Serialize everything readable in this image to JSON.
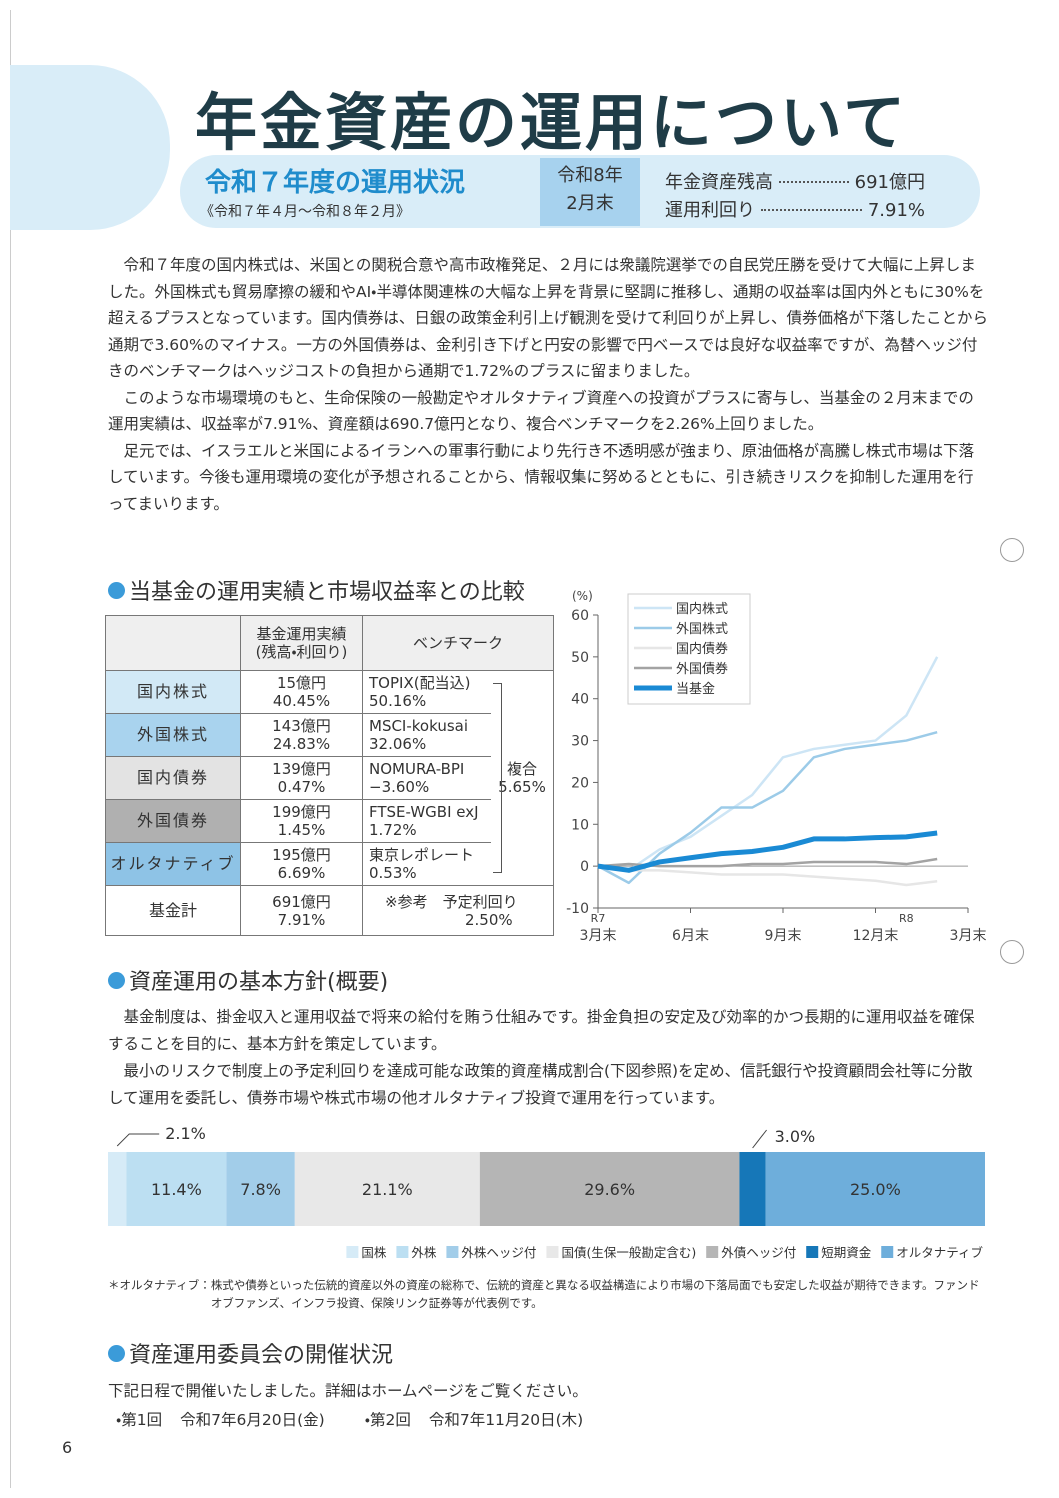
{
  "header": {
    "title": "年金資産の運用について",
    "subtitle": "令和７年度の運用状況",
    "period": "《令和７年４月～令和８年２月》",
    "asof": [
      "令和8年",
      "2月末"
    ],
    "summary": [
      {
        "label": "年金資産残高",
        "value": "691億円"
      },
      {
        "label": "運用利回り",
        "value": "7.91%"
      }
    ]
  },
  "body": [
    "令和７年度の国内株式は、米国との関税合意や高市政権発足、２月には衆議院選挙での自民党圧勝を受けて大幅に上昇しました。外国株式も貿易摩擦の緩和やAI・半導体関連株の大幅な上昇を背景に堅調に推移し、通期の収益率は国内外ともに30%を超えるプラスとなっています。国内債券は、日銀の政策金利引上げ観測を受けて利回りが上昇し、債券価格が下落したことから通期で3.60%のマイナス。一方の外国債券は、金利引き下げと円安の影響で円ベースでは良好な収益率ですが、為替ヘッジ付きのベンチマークはヘッジコストの負担から通期で1.72%のプラスに留まりました。",
    "このような市場環境のもと、生命保険の一般勘定やオルタナティブ資産への投資がプラスに寄与し、当基金の２月末までの運用実績は、収益率が7.91%、資産額は690.7億円となり、複合ベンチマークを2.26%上回りました。",
    "足元では、イスラエルと米国によるイランへの軍事行動により先行き不透明感が強まり、原油価格が高騰し株式市場は下落しています。今後も運用環境の変化が予想されることから、情報収集に努めるとともに、引き続きリスクを抑制した運用を行ってまいります。"
  ],
  "section1": {
    "heading": "当基金の運用実績と市場収益率との比較",
    "table": {
      "headers": [
        [
          "基金運用実績",
          "(残高・利回り)"
        ],
        [
          "ベンチマーク"
        ]
      ],
      "rows": [
        {
          "name": "国内株式",
          "amount": "15億円",
          "return": "40.45%",
          "benchmark": "TOPIX(配当込)",
          "benchmark_return": "50.16%"
        },
        {
          "name": "外国株式",
          "amount": "143億円",
          "return": "24.83%",
          "benchmark": "MSCI-kokusai",
          "benchmark_return": "32.06%"
        },
        {
          "name": "国内債券",
          "amount": "139億円",
          "return": "0.47%",
          "benchmark": "NOMURA-BPI",
          "benchmark_return": "−3.60%"
        },
        {
          "name": "外国債券",
          "amount": "199億円",
          "return": "1.45%",
          "benchmark": "FTSE-WGBI exJ",
          "benchmark_return": "1.72%"
        },
        {
          "name": "オルタナティブ",
          "amount": "195億円",
          "return": "6.69%",
          "benchmark": "東京レポレート",
          "benchmark_return": "0.53%"
        }
      ],
      "composite": {
        "label": "複合",
        "value": "5.65%"
      },
      "total": {
        "name": "基金計",
        "amount": "691億円",
        "return": "7.91%",
        "note": "※参考　予定利回り",
        "note_value": "2.50%"
      }
    }
  },
  "chart_data": [
    {
      "type": "line",
      "y_label": "(%)",
      "x": [
        0,
        1,
        2,
        3,
        4,
        5,
        6,
        7,
        8,
        9,
        10,
        11
      ],
      "xlim": [
        0,
        12
      ],
      "xticks": [
        {
          "value": 0,
          "label": "3月末"
        },
        {
          "value": 3,
          "label": "6月末"
        },
        {
          "value": 6,
          "label": "9月末"
        },
        {
          "value": 9,
          "label": "12月末"
        },
        {
          "value": 12,
          "label": "3月末"
        }
      ],
      "year_labels": [
        {
          "x": 0,
          "label": "R7"
        },
        {
          "x": 10,
          "label": "R8"
        }
      ],
      "ylim": [
        -10,
        60
      ],
      "yticks": [
        -10,
        0,
        10,
        20,
        30,
        40,
        50,
        60
      ],
      "series": [
        {
          "name": "国内株式",
          "color": "#cde5f5",
          "width": 2.5,
          "values": [
            0,
            -1,
            4,
            7,
            12,
            17,
            26,
            28,
            29,
            30,
            36,
            50
          ]
        },
        {
          "name": "外国株式",
          "color": "#9ccbe8",
          "width": 2.5,
          "values": [
            0,
            -4,
            3,
            8,
            14,
            14,
            18,
            26,
            28,
            29,
            30,
            32
          ]
        },
        {
          "name": "国内債券",
          "color": "#e6e6e6",
          "width": 2.5,
          "values": [
            0,
            -1,
            -1,
            -1.5,
            -2,
            -2,
            -2,
            -2.5,
            -3,
            -3.5,
            -4.5,
            -3.6
          ]
        },
        {
          "name": "外国債券",
          "color": "#a3a3a3",
          "width": 2.5,
          "values": [
            0,
            0.5,
            0,
            0,
            0,
            0.5,
            0.5,
            1,
            1,
            1,
            0.5,
            1.7
          ]
        },
        {
          "name": "当基金",
          "color": "#1a8ad4",
          "width": 5,
          "values": [
            0,
            -1,
            1,
            2,
            3,
            3.5,
            4.5,
            6.5,
            6.5,
            6.8,
            7,
            7.91
          ]
        }
      ]
    },
    {
      "type": "stacked_bar",
      "xlim": [
        0,
        100
      ],
      "segments": [
        {
          "name": "国株",
          "color": "#d6ebf7",
          "value": 2.1,
          "value_label": "2.1%"
        },
        {
          "name": "外株",
          "color": "#bcdff2",
          "value": 11.4,
          "value_label": "11.4%"
        },
        {
          "name": "外株ヘッジ付",
          "color": "#a2cde9",
          "value": 7.8,
          "value_label": "7.8%"
        },
        {
          "name": "国債(生保一般勘定含む)",
          "color": "#e8e8e8",
          "value": 21.1,
          "value_label": "21.1%"
        },
        {
          "name": "外債ヘッジ付",
          "color": "#b5b5b5",
          "value": 29.6,
          "value_label": "29.6%"
        },
        {
          "name": "短期資金",
          "color": "#1677b8",
          "value": 3.0,
          "value_label": "3.0%"
        },
        {
          "name": "オルタナティブ",
          "color": "#6eaedb",
          "value": 25.0,
          "value_label": "25.0%"
        }
      ]
    }
  ],
  "section2": {
    "heading": "資産運用の基本方針(概要)",
    "paragraphs": [
      "基金制度は、掛金収入と運用収益で将来の給付を賄う仕組みです。掛金負担の安定及び効率的かつ長期的に運用収益を確保することを目的に、基本方針を策定しています。",
      "最小のリスクで制度上の予定利回りを達成可能な政策的資産構成割合(下図参照)を定め、信託銀行や投資顧問会社等に分散して運用を委託し、債券市場や株式市場の他オルタナティブ投資で運用を行っています。"
    ],
    "footnote_label": "＊オルタナティブ：",
    "footnote": "株式や債券といった伝統的資産以外の資産の総称で、伝統的資産と異なる収益構造により市場の下落局面でも安定した収益が期待できます。ファンドオブファンズ、インフラ投資、保険リンク証券等が代表例です。"
  },
  "section3": {
    "heading": "資産運用委員会の開催状況",
    "intro": "下記日程で開催いたしました。詳細はホームページをご覧ください。",
    "meetings": [
      {
        "no": "・第1回",
        "date": "令和7年6月20日(金)"
      },
      {
        "no": "・第2回",
        "date": "令和7年11月20日(木)"
      }
    ]
  },
  "page_number": "6"
}
